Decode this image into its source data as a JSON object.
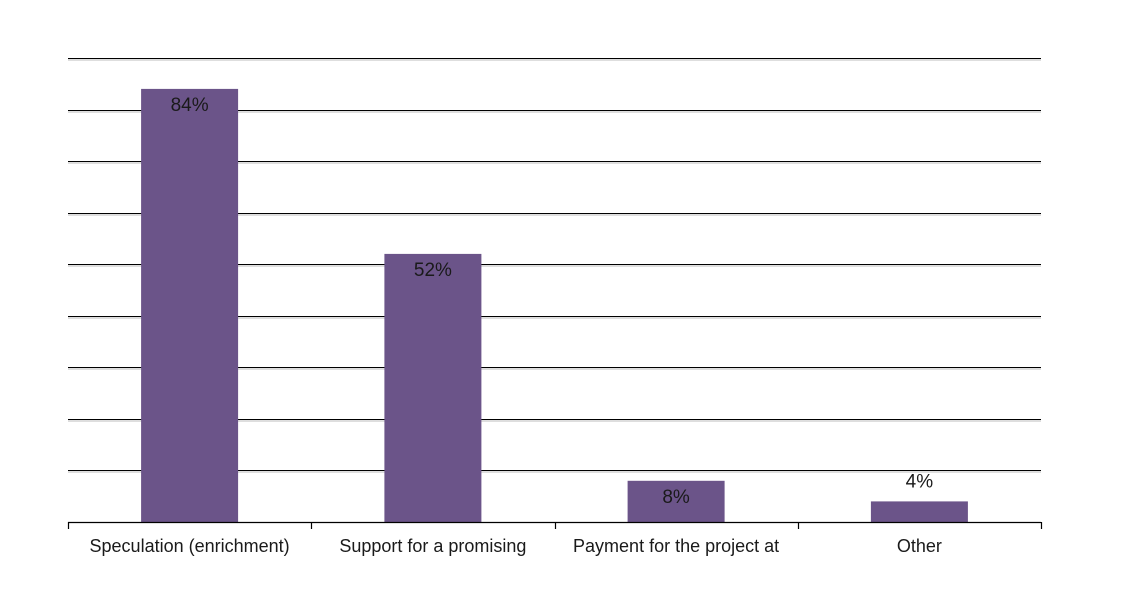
{
  "chart_data": {
    "type": "bar",
    "categories": [
      "Speculation (enrichment)",
      "Support for a promising",
      "Payment for the project at",
      "Other"
    ],
    "values": [
      84,
      52,
      8,
      4
    ],
    "data_labels": [
      "84%",
      "52%",
      "8%",
      "4%"
    ],
    "ylim": [
      0,
      90
    ],
    "y_gridline_step": 10,
    "grid": true,
    "legend": "none",
    "bar_color": "#6b5489"
  }
}
